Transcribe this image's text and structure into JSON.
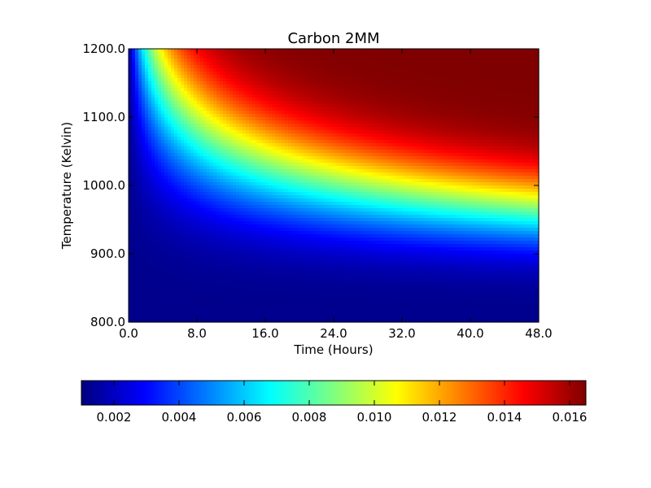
{
  "chart_data": {
    "type": "heatmap",
    "title": "Carbon 2MM",
    "xlabel": "Time (Hours)",
    "ylabel": "Temperature (Kelvin)",
    "xlim": [
      0,
      48
    ],
    "ylim": [
      800,
      1200
    ],
    "x_ticks": [
      "0.0",
      "8.0",
      "16.0",
      "24.0",
      "32.0",
      "40.0",
      "48.0"
    ],
    "y_ticks": [
      "800.0",
      "900.0",
      "1000.0",
      "1100.0",
      "1200.0"
    ],
    "colormap": "jet",
    "color_range": [
      0.001,
      0.0165
    ],
    "colorbar_ticks": [
      "0.002",
      "0.004",
      "0.006",
      "0.008",
      "0.010",
      "0.012",
      "0.014",
      "0.016"
    ],
    "colorbar_orientation": "horizontal",
    "colorbar_position": "bottom",
    "jet_stops": [
      "#00007f",
      "#0000ff",
      "#007fff",
      "#00ffff",
      "#7fff7f",
      "#ffff00",
      "#ff7f00",
      "#ff0000",
      "#7f0000"
    ],
    "grid": false
  }
}
